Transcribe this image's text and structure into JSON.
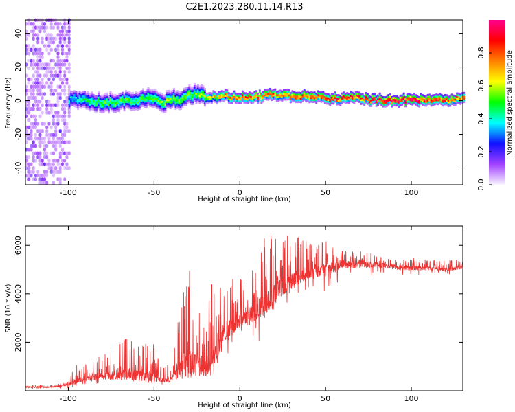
{
  "figure": {
    "title": "C2E1.2023.280.11.14.R13"
  },
  "chart_data": [
    {
      "type": "heatmap",
      "title": "C2E1.2023.280.11.14.R13",
      "xlabel": "Height of straight line (km)",
      "ylabel": "Frequency (Hz)",
      "xlim": [
        -125,
        130
      ],
      "ylim": [
        -50,
        48
      ],
      "x_ticks": [
        -100,
        -50,
        0,
        50,
        100
      ],
      "y_ticks": [
        -40,
        -20,
        0,
        20,
        40
      ],
      "colorbar": {
        "label": "Normalized spectral amplitude",
        "range": [
          0.0,
          1.0
        ],
        "ticks": [
          "0.0",
          "0.2",
          "0.4",
          "0.6",
          "0.8"
        ],
        "colormap": [
          "#f8f4ff",
          "#a040ff",
          "#1010ff",
          "#00ffff",
          "#00ff00",
          "#ffff00",
          "#ff8000",
          "#ff0000",
          "#ff0090"
        ]
      },
      "ridge": {
        "description_x": [
          -100,
          -90,
          -80,
          -70,
          -60,
          -50,
          -45,
          -40,
          -35,
          -30,
          -25,
          -20,
          -10,
          0,
          10,
          20,
          30,
          40,
          50,
          60,
          70,
          80,
          90,
          100,
          110,
          120,
          130
        ],
        "center_freq": [
          0,
          0,
          -2,
          -1,
          0,
          1,
          -2,
          1,
          -1,
          3,
          4,
          2,
          2,
          2,
          2,
          3,
          2,
          2,
          1,
          1,
          1,
          0,
          0,
          0,
          0,
          0,
          1
        ],
        "peak_amplitude": [
          0.35,
          0.45,
          0.5,
          0.5,
          0.5,
          0.55,
          0.55,
          0.55,
          0.55,
          0.55,
          0.55,
          0.6,
          0.7,
          0.8,
          0.8,
          0.75,
          0.8,
          0.85,
          0.85,
          0.85,
          0.85,
          0.9,
          0.95,
          0.95,
          0.9,
          0.85,
          0.8
        ]
      }
    },
    {
      "type": "line",
      "xlabel": "Height of straight line (km)",
      "ylabel": "SNR (10 * v/v)",
      "xlim": [
        -125,
        130
      ],
      "ylim": [
        0,
        6800
      ],
      "x_ticks": [
        -100,
        -50,
        0,
        50,
        100
      ],
      "y_ticks": [
        2000,
        4000,
        6000
      ],
      "color": "#ee3333",
      "envelope": {
        "x": [
          -125,
          -110,
          -100,
          -95,
          -90,
          -80,
          -70,
          -60,
          -50,
          -45,
          -40,
          -35,
          -30,
          -25,
          -20,
          -15,
          -10,
          -5,
          0,
          5,
          10,
          15,
          20,
          25,
          30,
          40,
          50,
          60,
          70,
          80,
          90,
          100,
          110,
          120,
          130
        ],
        "base": [
          150,
          150,
          250,
          400,
          500,
          600,
          650,
          650,
          500,
          400,
          450,
          900,
          1100,
          1200,
          1000,
          1200,
          2200,
          2600,
          2900,
          3000,
          3400,
          3500,
          4000,
          4300,
          4500,
          4800,
          5000,
          5200,
          5200,
          5200,
          5100,
          5050,
          5050,
          5000,
          5100
        ],
        "peak": [
          250,
          250,
          350,
          1300,
          1100,
          1500,
          2100,
          2200,
          2000,
          900,
          1200,
          3300,
          5200,
          3800,
          4000,
          5100,
          4300,
          4900,
          4800,
          5100,
          5300,
          6500,
          6700,
          6400,
          6500,
          6300,
          6200,
          5800,
          5800,
          5600,
          5400,
          5500,
          5450,
          5400,
          5400
        ],
        "trough": [
          50,
          50,
          80,
          200,
          250,
          300,
          350,
          300,
          250,
          200,
          250,
          400,
          500,
          600,
          500,
          800,
          1300,
          1700,
          2200,
          2600,
          1600,
          3100,
          3200,
          3500,
          3700,
          4200,
          4000,
          4500,
          4600,
          4700,
          4600,
          4750,
          4800,
          4800,
          4800
        ]
      }
    }
  ]
}
